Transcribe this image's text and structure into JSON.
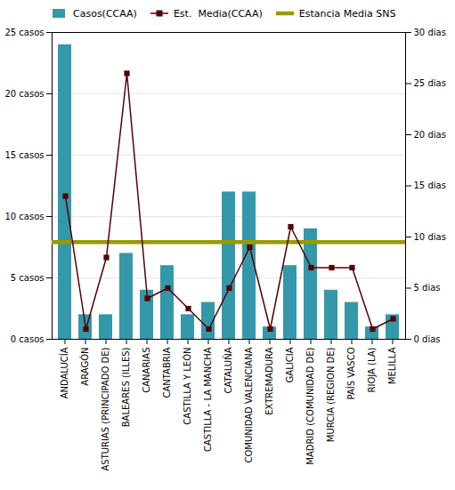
{
  "chart_data": {
    "type": "bar",
    "categories": [
      "ANDALUCÍA",
      "ARAGÓN",
      "ASTURIAS (PRINCIPADO DE)",
      "BALEARES (ILLES)",
      "CANARIAS",
      "CANTABRIA",
      "CASTILLA Y LEÓN",
      "CASTILLA - LA MANCHA",
      "CATALUÑA",
      "COMUNIDAD VALENCIANA",
      "EXTREMADURA",
      "GALICIA",
      "MADRID (COMUNIDAD DE)",
      "MURCIA (REGION DE)",
      "PAÍS VASCO",
      "RIOJA (LA)",
      "MELILLA"
    ],
    "series": [
      {
        "name": "Casos(CCAA)",
        "type": "bar",
        "color": "#3399aa",
        "values": [
          24,
          2,
          2,
          7,
          4,
          6,
          2,
          3,
          12,
          12,
          1,
          6,
          9,
          4,
          3,
          1,
          2
        ]
      },
      {
        "name": "Est.  Media(CCAA)",
        "type": "line",
        "axis": "y2",
        "color": "#550000",
        "marker": "square",
        "values": [
          14,
          1,
          8,
          26,
          4,
          5,
          3,
          1,
          5,
          9,
          1,
          11,
          7,
          7,
          7,
          1,
          2
        ]
      },
      {
        "name": "Estancia Media SNS",
        "type": "hline",
        "axis": "y2",
        "color": "#999900",
        "value": 9.5
      }
    ],
    "ylim": [
      0,
      25
    ],
    "yticks": [
      {
        "value": 0,
        "label": "0 casos"
      },
      {
        "value": 5,
        "label": "5 casos"
      },
      {
        "value": 10,
        "label": "10 casos"
      },
      {
        "value": 15,
        "label": "15 casos"
      },
      {
        "value": 20,
        "label": "20 casos"
      },
      {
        "value": 25,
        "label": "25 casos"
      }
    ],
    "y2lim": [
      0,
      30
    ],
    "y2ticks": [
      {
        "value": 0,
        "label": "0 dias"
      },
      {
        "value": 5,
        "label": "5 dias"
      },
      {
        "value": 10,
        "label": "10 dias"
      },
      {
        "value": 15,
        "label": "15 dias"
      },
      {
        "value": 20,
        "label": "20 dias"
      },
      {
        "value": 25,
        "label": "25 dias"
      },
      {
        "value": 30,
        "label": "30 dias"
      }
    ],
    "grid": true,
    "legend": "top"
  }
}
